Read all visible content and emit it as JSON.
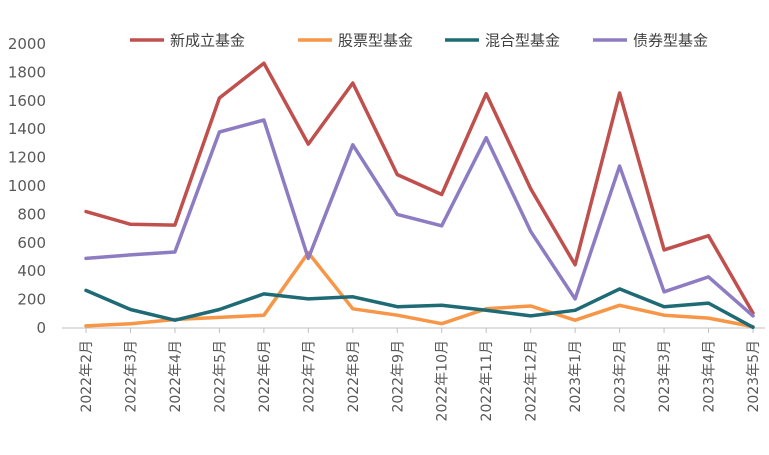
{
  "chart_data": {
    "type": "line",
    "title": "",
    "xlabel": "",
    "ylabel": "",
    "ylim": [
      0,
      2000
    ],
    "yticks": [
      0,
      200,
      400,
      600,
      800,
      1000,
      1200,
      1400,
      1600,
      1800,
      2000
    ],
    "grid": false,
    "legend_position": "top",
    "categories": [
      "2022年2月",
      "2022年3月",
      "2022年4月",
      "2022年5月",
      "2022年6月",
      "2022年7月",
      "2022年8月",
      "2022年9月",
      "2022年10月",
      "2022年11月",
      "2022年12月",
      "2023年1月",
      "2023年2月",
      "2023年3月",
      "2023年4月",
      "2023年5月"
    ],
    "series": [
      {
        "name": "新成立基金",
        "color": "#C0504D",
        "values": [
          820,
          730,
          725,
          1620,
          1865,
          1295,
          1725,
          1080,
          940,
          1650,
          980,
          445,
          1655,
          550,
          650,
          105
        ]
      },
      {
        "name": "股票型基金",
        "color": "#F79646",
        "values": [
          15,
          30,
          60,
          75,
          90,
          530,
          135,
          90,
          30,
          135,
          155,
          55,
          160,
          90,
          70,
          10
        ]
      },
      {
        "name": "混合型基金",
        "color": "#1F6B75",
        "values": [
          265,
          130,
          55,
          130,
          240,
          205,
          220,
          150,
          160,
          125,
          85,
          125,
          275,
          150,
          175,
          5
        ]
      },
      {
        "name": "债券型基金",
        "color": "#8E7CC3",
        "values": [
          490,
          515,
          535,
          1380,
          1465,
          490,
          1290,
          800,
          720,
          1340,
          680,
          205,
          1140,
          255,
          360,
          85
        ]
      }
    ]
  }
}
